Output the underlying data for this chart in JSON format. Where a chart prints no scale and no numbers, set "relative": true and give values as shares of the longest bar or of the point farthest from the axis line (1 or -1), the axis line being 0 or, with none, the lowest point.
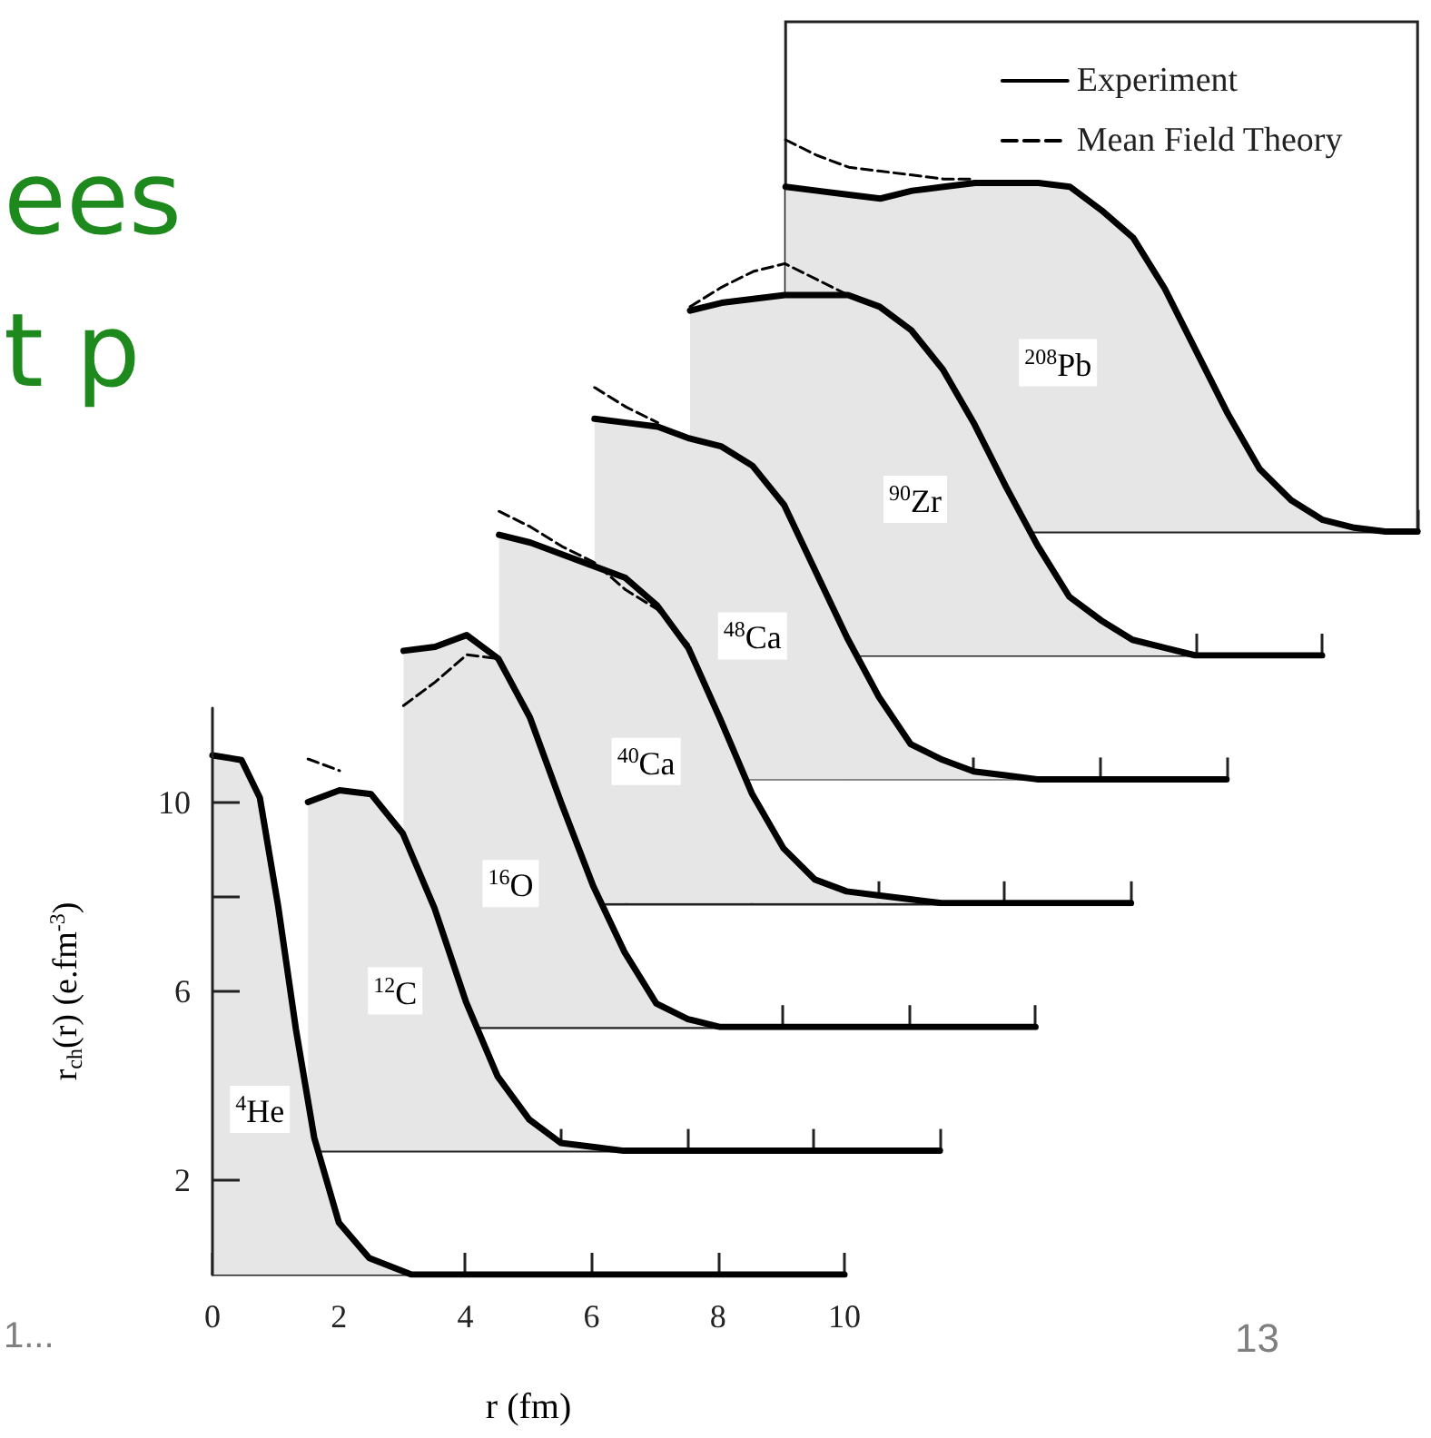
{
  "chart_data": [
    {
      "type": "area",
      "xlabel": "r (fm)",
      "ylabel": "r$_{ch}$(r) (e.fm$^{-3}$)",
      "xlim": [
        0,
        10
      ],
      "ylim": [
        0,
        12
      ],
      "xticks": [
        0,
        2,
        4,
        6,
        8,
        10
      ],
      "yticks": [
        2,
        6,
        {
          "value": 8,
          "label": null
        },
        10
      ],
      "marker": "none",
      "series": [
        {
          "type": "area",
          "color": "#000000",
          "line_style": "solid",
          "x": [
            0,
            0.46,
            0.75,
            1.04,
            1.32,
            1.61,
            2.0,
            2.48,
            3.15,
            10
          ],
          "values": [
            11.0,
            10.9,
            10.1,
            7.8,
            5.2,
            2.9,
            1.1,
            0.35,
            0,
            0
          ]
        }
      ],
      "annotations": [
        {
          "text": "$^{4}$He",
          "x": 0.75,
          "y": 3.5
        },
        "ees",
        "t p",
        "1...",
        "13"
      ]
    },
    {
      "type": "area",
      "relative": true,
      "categories": [
        null,
        null,
        null,
        null,
        null,
        null,
        null,
        null,
        null,
        null,
        null,
        null,
        null,
        null,
        null,
        null,
        null,
        null,
        null,
        null,
        null
      ],
      "marker": "none",
      "series": [
        {
          "type": "area",
          "color": "#000000",
          "line_style": "solid",
          "values": [
            0.89,
            0.92,
            0.91,
            0.81,
            0.62,
            0.38,
            0.19,
            0.08,
            0.02,
            0.01,
            0,
            0,
            0,
            0,
            0,
            0,
            0,
            0,
            0,
            0,
            0
          ]
        },
        {
          "type": "line",
          "color": "#000000",
          "line_style": "dashed",
          "values": [
            1.0,
            0.97,
            null,
            null,
            null,
            null,
            null,
            null,
            null,
            null,
            null,
            null,
            null,
            null,
            null,
            null,
            null,
            null,
            null,
            null,
            null
          ]
        }
      ],
      "annotations": [
        "$^{12}$C"
      ]
    },
    {
      "type": "area",
      "relative": true,
      "categories": [
        null,
        null,
        null,
        null,
        null,
        null,
        null,
        null,
        null,
        null,
        null,
        null,
        null,
        null,
        null,
        null,
        null,
        null,
        null,
        null,
        null
      ],
      "marker": "none",
      "series": [
        {
          "type": "area",
          "color": "#000000",
          "line_style": "solid",
          "values": [
            0.96,
            0.97,
            1.0,
            0.94,
            0.79,
            0.57,
            0.36,
            0.19,
            0.06,
            0.02,
            0,
            0,
            0,
            0,
            0,
            0,
            0,
            0,
            0,
            0,
            0
          ]
        },
        {
          "type": "line",
          "color": "#000000",
          "line_style": "dashed",
          "values": [
            0.82,
            0.88,
            0.95,
            0.94,
            null,
            null,
            null,
            null,
            null,
            null,
            null,
            null,
            null,
            null,
            null,
            null,
            null,
            null,
            null,
            null,
            null
          ]
        }
      ],
      "annotations": [
        "$^{16}$O"
      ]
    },
    {
      "type": "area",
      "relative": true,
      "categories": [
        null,
        null,
        null,
        null,
        null,
        null,
        null,
        null,
        null,
        null,
        null,
        null,
        null,
        null,
        null,
        null,
        null,
        null,
        null,
        null,
        null
      ],
      "marker": "none",
      "series": [
        {
          "type": "area",
          "color": "#000000",
          "line_style": "solid",
          "values": [
            0.94,
            0.92,
            0.89,
            0.86,
            0.83,
            0.76,
            0.65,
            0.47,
            0.28,
            0.14,
            0.06,
            0.03,
            0.02,
            0.01,
            0,
            0,
            0,
            0,
            0,
            0,
            0
          ]
        },
        {
          "type": "line",
          "color": "#000000",
          "line_style": "dashed",
          "values": [
            1.0,
            0.96,
            0.91,
            0.87,
            0.8,
            0.75,
            0.66,
            null,
            null,
            null,
            null,
            null,
            null,
            null,
            null,
            null,
            null,
            null,
            null,
            null,
            null
          ]
        }
      ],
      "annotations": [
        "$^{40}$Ca"
      ]
    },
    {
      "type": "area",
      "relative": true,
      "categories": [
        null,
        null,
        null,
        null,
        null,
        null,
        null,
        null,
        null,
        null,
        null,
        null,
        null,
        null,
        null,
        null,
        null,
        null,
        null,
        null,
        null
      ],
      "marker": "none",
      "series": [
        {
          "type": "area",
          "color": "#000000",
          "line_style": "solid",
          "values": [
            0.92,
            0.91,
            0.9,
            0.87,
            0.85,
            0.8,
            0.7,
            0.53,
            0.36,
            0.21,
            0.09,
            0.05,
            0.02,
            0.01,
            0,
            0,
            0,
            0,
            0,
            0,
            0
          ]
        },
        {
          "type": "line",
          "color": "#000000",
          "line_style": "dashed",
          "values": [
            1.0,
            0.95,
            0.91,
            null,
            null,
            null,
            null,
            null,
            null,
            null,
            null,
            null,
            null,
            null,
            null,
            null,
            null,
            null,
            null,
            null,
            null
          ]
        }
      ],
      "annotations": [
        "$^{48}$Ca"
      ]
    },
    {
      "type": "area",
      "relative": true,
      "categories": [
        null,
        null,
        null,
        null,
        null,
        null,
        null,
        null,
        null,
        null,
        null,
        null,
        null,
        null,
        null,
        null,
        null,
        null,
        null,
        null,
        null
      ],
      "marker": "none",
      "series": [
        {
          "type": "area",
          "color": "#000000",
          "line_style": "solid",
          "values": [
            0.88,
            0.9,
            0.91,
            0.92,
            0.92,
            0.92,
            0.89,
            0.83,
            0.73,
            0.59,
            0.43,
            0.28,
            0.15,
            0.09,
            0.04,
            0.02,
            0,
            0,
            0,
            0,
            0
          ]
        },
        {
          "type": "line",
          "color": "#000000",
          "line_style": "dashed",
          "values": [
            0.89,
            0.94,
            0.98,
            1.0,
            0.96,
            0.92,
            null,
            null,
            null,
            null,
            null,
            null,
            null,
            null,
            null,
            null,
            null,
            null,
            null,
            null,
            null
          ]
        }
      ],
      "annotations": [
        "$^{90}$Zr"
      ]
    },
    {
      "type": "area",
      "relative": true,
      "categories": [
        null,
        null,
        null,
        null,
        null,
        null,
        null,
        null,
        null,
        null,
        null,
        null,
        null,
        null,
        null,
        null,
        null,
        null,
        null,
        null,
        null
      ],
      "marker": "none",
      "legend": "top right",
      "series": [
        {
          "type": "area",
          "name": "Experiment",
          "color": "#000000",
          "line_style": "solid",
          "values": [
            0.88,
            0.87,
            0.86,
            0.85,
            0.87,
            0.88,
            0.89,
            0.89,
            0.89,
            0.88,
            0.82,
            0.75,
            0.62,
            0.46,
            0.3,
            0.16,
            0.08,
            0.03,
            0.01,
            0,
            0
          ]
        },
        {
          "type": "line",
          "name": "Mean Field Theory",
          "color": "#000000",
          "line_style": "dashed",
          "values": [
            1.0,
            0.96,
            0.93,
            0.92,
            0.91,
            0.9,
            0.9,
            null,
            null,
            null,
            null,
            null,
            null,
            null,
            null,
            null,
            null,
            null,
            null,
            null,
            null
          ]
        }
      ],
      "annotations": [
        "$^{208}$Pb"
      ]
    }
  ]
}
